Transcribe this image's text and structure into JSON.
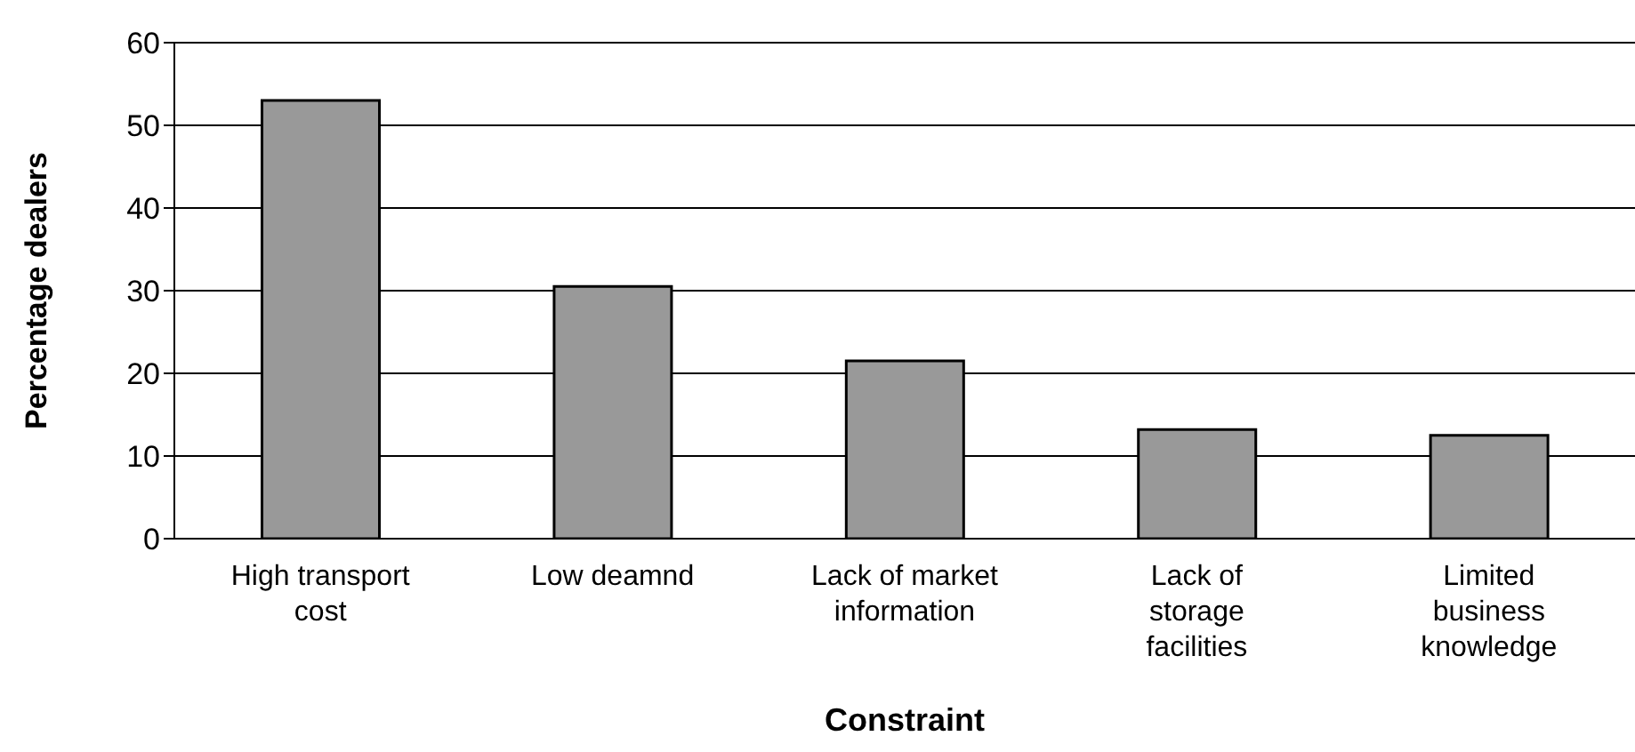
{
  "chart_data": {
    "type": "bar",
    "xlabel": "Constraint",
    "ylabel": "Percentage dealers",
    "categories": [
      "High transport cost",
      "Low deamnd",
      "Lack of market information",
      "Lack of storage facilities",
      "Limited business knowledge"
    ],
    "values": [
      53,
      30.5,
      21.5,
      13.2,
      12.5
    ],
    "color": "#999999",
    "ylim": [
      0,
      60
    ],
    "yticks": [
      0,
      10,
      20,
      30,
      40,
      50,
      60
    ],
    "grid": "y",
    "legend": false
  }
}
